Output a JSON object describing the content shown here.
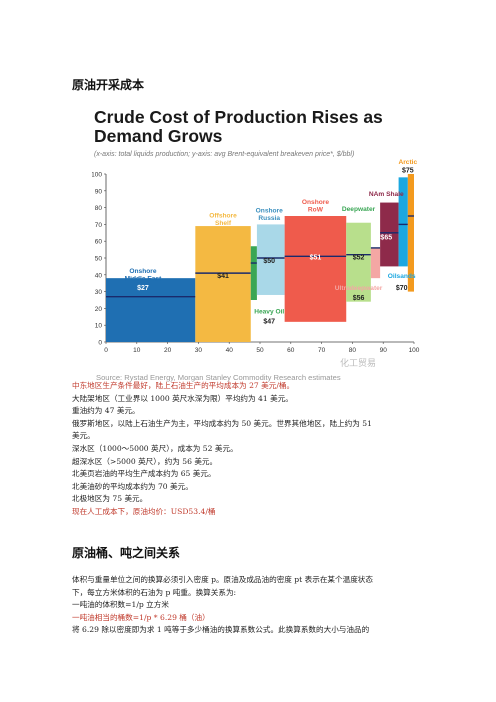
{
  "heading1": "原油开采成本",
  "heading2": "原油桶、吨之间关系",
  "watermark": "化工贸易",
  "chart_data": {
    "type": "bar",
    "title": "Crude Cost of Production Rises as Demand Grows",
    "subtitle": "(x-axis: total liquids production; y-axis: avg Brent-equivalent breakeven price*, $/bbl)",
    "source": "Source: Rystad Energy, Morgan Stanley Commodity Research estimates",
    "xlim": [
      0,
      100
    ],
    "ylim": [
      0,
      100
    ],
    "xticks": [
      "0",
      "10",
      "20",
      "30",
      "40",
      "50",
      "60",
      "70",
      "80",
      "90",
      "100"
    ],
    "yticks": [
      "0",
      "10",
      "20",
      "30",
      "40",
      "50",
      "60",
      "70",
      "80",
      "90",
      "100"
    ],
    "grid": false,
    "segments": [
      {
        "name": "Onshore Middle East",
        "label": "Onshore\nMiddle East",
        "x0": 0,
        "x1": 29,
        "low": 0,
        "high": 38,
        "avg": 27,
        "value_label": "$27",
        "color": "#1f6fb2"
      },
      {
        "name": "Offshore Shelf",
        "label": "Offshore\nShelf",
        "x0": 29,
        "x1": 47,
        "low": 0,
        "high": 69,
        "avg": 41,
        "value_label": "$41",
        "color": "#f4b942"
      },
      {
        "name": "Heavy Oil",
        "label": "Heavy Oil",
        "x0": 47,
        "x1": 49,
        "low": 25,
        "high": 57,
        "avg": 47,
        "value_label": "$47",
        "color": "#3aa655"
      },
      {
        "name": "Onshore Russia",
        "label": "Onshore\nRussia",
        "x0": 49,
        "x1": 58,
        "low": 28,
        "high": 70,
        "avg": 50,
        "value_label": "$50",
        "color": "#a9d8e8"
      },
      {
        "name": "Onshore RoW",
        "label": "Onshore\nRoW",
        "x0": 58,
        "x1": 78,
        "low": 12,
        "high": 75,
        "avg": 51,
        "value_label": "$51",
        "color": "#ef5b4c"
      },
      {
        "name": "Deepwater",
        "label": "Deepwater",
        "x0": 78,
        "x1": 86,
        "low": 24,
        "high": 71,
        "avg": 52,
        "value_label": "$52",
        "color": "#b8df8c"
      },
      {
        "name": "Ultradeepwater",
        "label": "Ultradeepwater",
        "x0": 86,
        "x1": 89,
        "low": 38,
        "high": 56,
        "avg": 56,
        "value_label": "$56",
        "color": "#f4a7a4"
      },
      {
        "name": "NAm Shale",
        "label": "NAm Shale",
        "x0": 89,
        "x1": 95,
        "low": 45,
        "high": 83,
        "avg": 65,
        "value_label": "$65",
        "color": "#8e2a4a"
      },
      {
        "name": "Oilsands",
        "label": "Oilsands",
        "x0": 95,
        "x1": 98,
        "low": 45,
        "high": 98,
        "avg": 70,
        "value_label": "$70",
        "color": "#1ba7e0"
      },
      {
        "name": "Arctic",
        "label": "Arctic",
        "x0": 98,
        "x1": 100,
        "low": 30,
        "high": 100,
        "avg": 75,
        "value_label": "$75",
        "color": "#f39a1e"
      }
    ]
  },
  "paragraph1": [
    {
      "text": "中东地区生产条件最好，陆上石油生产的平均成本为 27 美元/桶。",
      "red": true
    },
    {
      "text": "大陆架地区（工业界以 1000 英尺水深为限）平均约为 41 美元。",
      "red": false
    },
    {
      "text": "重油约为 47 美元。",
      "red": false
    },
    {
      "text": "俄罗斯地区，以陆上石油生产为主，平均成本约为  50  美元。世界其他地区，陆上约为  51",
      "red": false
    },
    {
      "text": "美元。",
      "red": false
    },
    {
      "text": "深水区（1000～5000 英尺），成本为 52 美元。",
      "red": false
    },
    {
      "text": "超深水区（>5000 英尺），约为 56 美元。",
      "red": false
    },
    {
      "text": "北美页岩油的平均生产成本约为 65 美元。",
      "red": false
    },
    {
      "text": "北美油砂的平均成本约为 70 美元。",
      "red": false
    },
    {
      "text": "北极地区为 75 美元。",
      "red": false
    },
    {
      "text": "现在人工成本下，原油均价：USD53.4/桶",
      "red": true
    }
  ],
  "paragraph2": [
    {
      "text": "体积与重量单位之间的换算必须引入密度  p。原油及成品油的密度  pt 表示在某个温度状态",
      "red": false
    },
    {
      "text": "下，每立方米体积的石油为 p 吨重。换算关系为:",
      "red": false
    },
    {
      "text": "一吨油的体积数=1/p 立方米",
      "red": false
    },
    {
      "text": "一吨油相当的桶数=1/p * 6.29 桶（油）",
      "red": true
    },
    {
      "text": "将 6.29 除以密度即为求 1 吨等于多少桶油的换算系数公式。此换算系数的大小与油品的",
      "red": false
    }
  ]
}
